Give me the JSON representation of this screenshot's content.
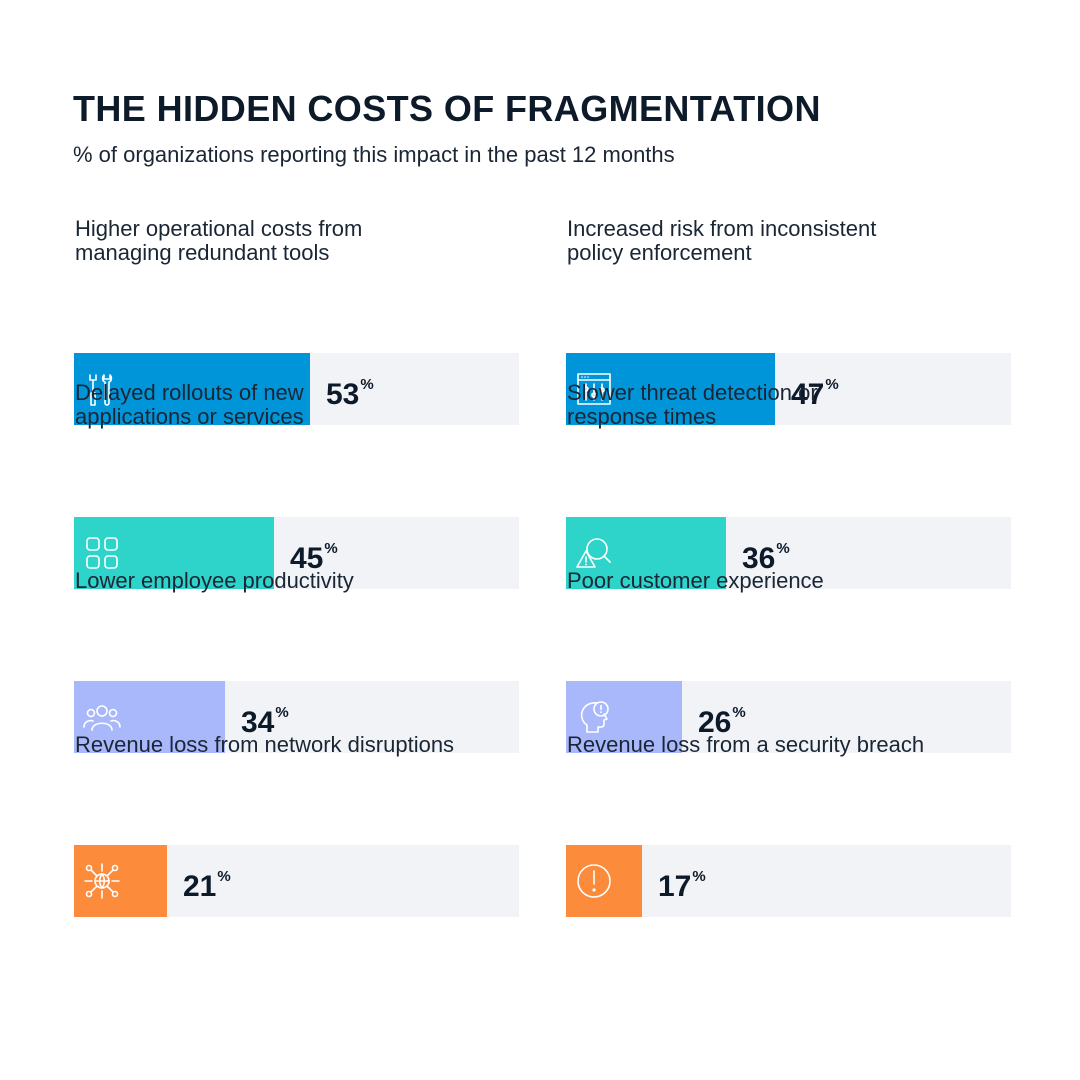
{
  "title": "THE HIDDEN COSTS OF FRAGMENTATION",
  "subtitle": "% of organizations reporting this impact in the past 12 months",
  "chart_data": {
    "type": "bar",
    "unit": "%",
    "ylim": [
      0,
      100
    ],
    "categories": [
      "Higher operational costs from managing redundant tools",
      "Increased risk from inconsistent policy enforcement",
      "Delayed rollouts of new applications or services",
      "Slower threat detection or response times",
      "Lower employee productivity",
      "Poor customer experience",
      "Revenue loss from network disruptions",
      "Revenue loss from a security breach"
    ],
    "values": [
      53,
      47,
      45,
      36,
      34,
      26,
      21,
      17
    ]
  },
  "items": [
    {
      "label": "Higher operational costs from\nmanaging redundant tools",
      "value": "53",
      "unit": "%",
      "icon": "tools-icon",
      "color": "#0095d9"
    },
    {
      "label": "Increased risk from inconsistent\npolicy enforcement",
      "value": "47",
      "unit": "%",
      "icon": "policy-settings-icon",
      "color": "#0095d9"
    },
    {
      "label": "Delayed rollouts of new\napplications or services",
      "value": "45",
      "unit": "%",
      "icon": "apps-grid-icon",
      "color": "#2ed3ca"
    },
    {
      "label": "Slower threat detection or\nresponse times",
      "value": "36",
      "unit": "%",
      "icon": "threat-search-icon",
      "color": "#2ed3ca"
    },
    {
      "label": "Lower employee productivity",
      "value": "34",
      "unit": "%",
      "icon": "people-icon",
      "color": "#a9b8fb"
    },
    {
      "label": "Poor customer experience",
      "value": "26",
      "unit": "%",
      "icon": "customer-alert-icon",
      "color": "#a9b8fb"
    },
    {
      "label": "Revenue loss from network disruptions",
      "value": "21",
      "unit": "%",
      "icon": "network-icon",
      "color": "#fd8b3c"
    },
    {
      "label": "Revenue loss from a security breach",
      "value": "17",
      "unit": "%",
      "icon": "warning-icon",
      "color": "#fd8b3c"
    }
  ]
}
